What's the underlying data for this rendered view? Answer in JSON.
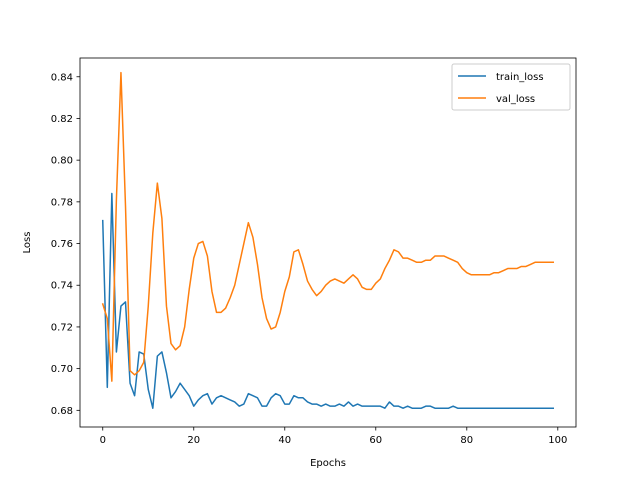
{
  "chart_data": {
    "type": "line",
    "title": "",
    "xlabel": "Epochs",
    "ylabel": "Loss",
    "xlim": [
      -5,
      104
    ],
    "ylim": [
      0.672,
      0.849
    ],
    "xticks": [
      0,
      20,
      40,
      60,
      80,
      100
    ],
    "yticks": [
      0.68,
      0.7,
      0.72,
      0.74,
      0.76,
      0.78,
      0.8,
      0.82,
      0.84
    ],
    "grid": false,
    "legend": "top-right",
    "series": [
      {
        "name": "train_loss",
        "color": "#1f77b4",
        "x": [
          0,
          1,
          2,
          3,
          4,
          5,
          6,
          7,
          8,
          9,
          10,
          11,
          12,
          13,
          14,
          15,
          16,
          17,
          18,
          19,
          20,
          21,
          22,
          23,
          24,
          25,
          26,
          27,
          28,
          29,
          30,
          31,
          32,
          33,
          34,
          35,
          36,
          37,
          38,
          39,
          40,
          41,
          42,
          43,
          44,
          45,
          46,
          47,
          48,
          49,
          50,
          51,
          52,
          53,
          54,
          55,
          56,
          57,
          58,
          59,
          60,
          61,
          62,
          63,
          64,
          65,
          66,
          67,
          68,
          69,
          70,
          71,
          72,
          73,
          74,
          75,
          76,
          77,
          78,
          79,
          80,
          81,
          82,
          83,
          84,
          85,
          86,
          87,
          88,
          89,
          90,
          91,
          92,
          93,
          94,
          95,
          96,
          97,
          98,
          99
        ],
        "values": [
          0.771,
          0.691,
          0.784,
          0.708,
          0.73,
          0.732,
          0.693,
          0.687,
          0.708,
          0.707,
          0.69,
          0.681,
          0.706,
          0.708,
          0.698,
          0.686,
          0.689,
          0.693,
          0.69,
          0.687,
          0.682,
          0.685,
          0.687,
          0.688,
          0.683,
          0.686,
          0.687,
          0.686,
          0.685,
          0.684,
          0.682,
          0.683,
          0.688,
          0.687,
          0.686,
          0.682,
          0.682,
          0.686,
          0.688,
          0.687,
          0.683,
          0.683,
          0.687,
          0.686,
          0.686,
          0.684,
          0.683,
          0.683,
          0.682,
          0.683,
          0.682,
          0.682,
          0.683,
          0.682,
          0.684,
          0.682,
          0.683,
          0.682,
          0.682,
          0.682,
          0.682,
          0.682,
          0.681,
          0.684,
          0.682,
          0.682,
          0.681,
          0.682,
          0.681,
          0.681,
          0.681,
          0.682,
          0.682,
          0.681,
          0.681,
          0.681,
          0.681,
          0.682,
          0.681,
          0.681,
          0.681,
          0.681,
          0.681,
          0.681,
          0.681,
          0.681,
          0.681,
          0.681,
          0.681,
          0.681,
          0.681,
          0.681,
          0.681,
          0.681,
          0.681,
          0.681,
          0.681,
          0.681,
          0.681,
          0.681
        ]
      },
      {
        "name": "val_loss",
        "color": "#ff7f0e",
        "x": [
          0,
          1,
          2,
          3,
          4,
          5,
          6,
          7,
          8,
          9,
          10,
          11,
          12,
          13,
          14,
          15,
          16,
          17,
          18,
          19,
          20,
          21,
          22,
          23,
          24,
          25,
          26,
          27,
          28,
          29,
          30,
          31,
          32,
          33,
          34,
          35,
          36,
          37,
          38,
          39,
          40,
          41,
          42,
          43,
          44,
          45,
          46,
          47,
          48,
          49,
          50,
          51,
          52,
          53,
          54,
          55,
          56,
          57,
          58,
          59,
          60,
          61,
          62,
          63,
          64,
          65,
          66,
          67,
          68,
          69,
          70,
          71,
          72,
          73,
          74,
          75,
          76,
          77,
          78,
          79,
          80,
          81,
          82,
          83,
          84,
          85,
          86,
          87,
          88,
          89,
          90,
          91,
          92,
          93,
          94,
          95,
          96,
          97,
          98,
          99
        ],
        "values": [
          0.731,
          0.724,
          0.694,
          0.781,
          0.842,
          0.778,
          0.699,
          0.697,
          0.699,
          0.703,
          0.73,
          0.765,
          0.789,
          0.772,
          0.73,
          0.712,
          0.709,
          0.711,
          0.72,
          0.738,
          0.753,
          0.76,
          0.761,
          0.754,
          0.737,
          0.727,
          0.727,
          0.729,
          0.734,
          0.74,
          0.75,
          0.76,
          0.77,
          0.763,
          0.75,
          0.734,
          0.724,
          0.719,
          0.72,
          0.727,
          0.737,
          0.744,
          0.756,
          0.757,
          0.75,
          0.742,
          0.738,
          0.735,
          0.737,
          0.74,
          0.742,
          0.743,
          0.742,
          0.741,
          0.743,
          0.745,
          0.743,
          0.739,
          0.738,
          0.738,
          0.741,
          0.743,
          0.748,
          0.752,
          0.757,
          0.756,
          0.753,
          0.753,
          0.752,
          0.751,
          0.751,
          0.752,
          0.752,
          0.754,
          0.754,
          0.754,
          0.753,
          0.752,
          0.751,
          0.748,
          0.746,
          0.745,
          0.745,
          0.745,
          0.745,
          0.745,
          0.746,
          0.746,
          0.747,
          0.748,
          0.748,
          0.748,
          0.749,
          0.749,
          0.75,
          0.751,
          0.751,
          0.751,
          0.751,
          0.751
        ]
      }
    ]
  }
}
